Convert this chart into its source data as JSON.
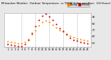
{
  "title": "Milwaukee Weather  Outdoor Temperature  vs THSW Index  per Hour  (24 Hours)",
  "title_fontsize": 2.8,
  "background_color": "#e8e8e8",
  "plot_bg_color": "#ffffff",
  "grid_color": "#aaaaaa",
  "hours": [
    1,
    2,
    3,
    4,
    5,
    6,
    7,
    8,
    9,
    10,
    11,
    12,
    13,
    14,
    15,
    16,
    17,
    18,
    19,
    20,
    21,
    22,
    23,
    24
  ],
  "xtick_labels": [
    "1",
    "2",
    "3",
    "4",
    "5",
    "6",
    "7",
    "8",
    "9",
    "1",
    "1",
    "1",
    "1",
    "1",
    "1",
    "1",
    "1",
    "1",
    "1",
    "2",
    "2",
    "2",
    "2",
    "2"
  ],
  "temp": [
    52,
    51,
    50,
    49,
    49,
    51,
    56,
    63,
    70,
    77,
    82,
    84,
    82,
    78,
    74,
    70,
    67,
    64,
    61,
    59,
    57,
    56,
    55,
    53
  ],
  "thsw": [
    48,
    47,
    46,
    45,
    45,
    48,
    55,
    65,
    76,
    85,
    92,
    95,
    91,
    85,
    79,
    73,
    68,
    63,
    58,
    55,
    53,
    51,
    50,
    49
  ],
  "temp_color": "#ff8800",
  "thsw_color": "#cc0000",
  "dot_size": 2.5,
  "ylim": [
    44,
    96
  ],
  "ytick_vals": [
    50,
    60,
    70,
    80,
    90
  ],
  "ytick_labels": [
    "50",
    "60",
    "70",
    "80",
    "90"
  ],
  "tick_fontsize": 2.5,
  "legend_fontsize": 2.8,
  "dashed_grid_hours": [
    5,
    9,
    13,
    17,
    21
  ],
  "legend_temp_label": "Temp",
  "legend_thsw_label": "THSW",
  "legend_bar_color": "#ff8800",
  "legend_bar2_color": "#cc0000",
  "xlim": [
    0,
    25
  ]
}
